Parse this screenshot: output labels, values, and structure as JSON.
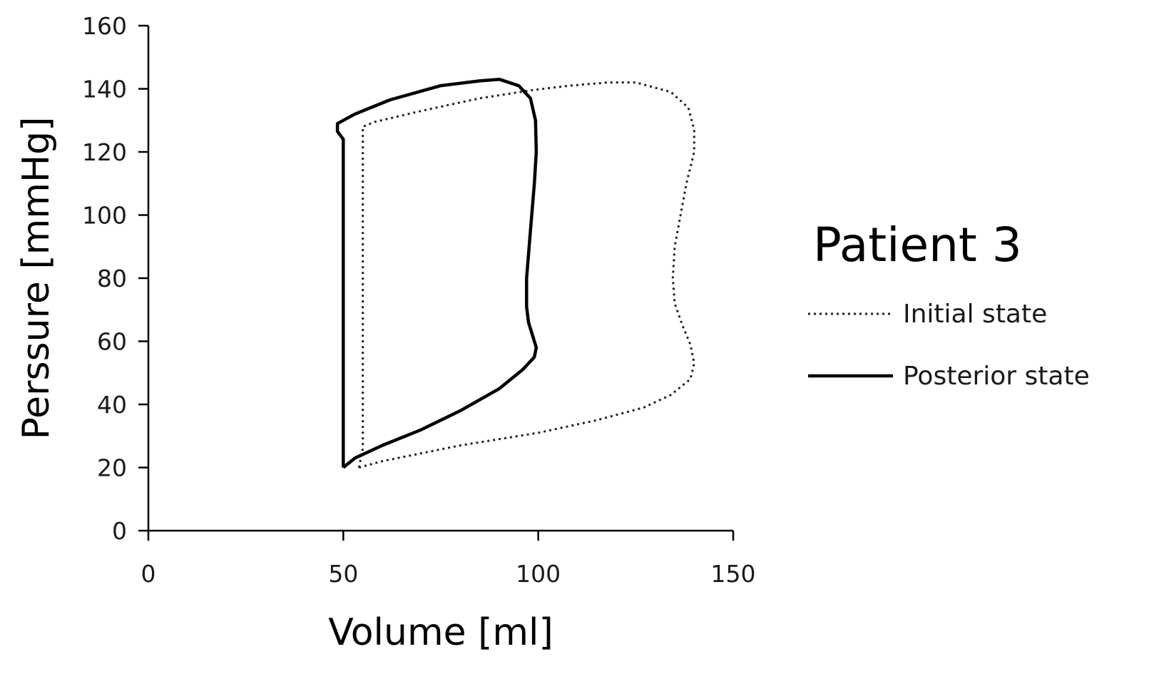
{
  "chart_data": {
    "type": "line",
    "title": "Patient 3",
    "xlabel": "Volume [ml]",
    "ylabel": "Perssure [mmHg]",
    "xlim": [
      0,
      150
    ],
    "ylim": [
      0,
      160
    ],
    "xticks": [
      0,
      50,
      100,
      150
    ],
    "yticks": [
      0,
      20,
      40,
      60,
      80,
      100,
      120,
      140,
      160
    ],
    "grid": false,
    "legend_position": "right",
    "series": [
      {
        "name": "Initial state",
        "style": "dotted",
        "color": "#222222",
        "points": [
          [
            54,
            20
          ],
          [
            60,
            22
          ],
          [
            80,
            27
          ],
          [
            100,
            31
          ],
          [
            115,
            35
          ],
          [
            127,
            39
          ],
          [
            134,
            43
          ],
          [
            139,
            48
          ],
          [
            140,
            53
          ],
          [
            139,
            59
          ],
          [
            137,
            65
          ],
          [
            135,
            72
          ],
          [
            134.5,
            80
          ],
          [
            135,
            90
          ],
          [
            136.5,
            100
          ],
          [
            138,
            110
          ],
          [
            140,
            120
          ],
          [
            140,
            127
          ],
          [
            138.5,
            134
          ],
          [
            134,
            139
          ],
          [
            125,
            142
          ],
          [
            118,
            142
          ],
          [
            108,
            141
          ],
          [
            98,
            139.5
          ],
          [
            85,
            137
          ],
          [
            70,
            133
          ],
          [
            58,
            129.5
          ],
          [
            55,
            128
          ],
          [
            55,
            120
          ],
          [
            55,
            100
          ],
          [
            55,
            80
          ],
          [
            55,
            60
          ],
          [
            55,
            40
          ],
          [
            55,
            26
          ],
          [
            54,
            20
          ]
        ]
      },
      {
        "name": "Posterior state",
        "style": "solid",
        "color": "#000000",
        "points": [
          [
            50,
            20
          ],
          [
            53,
            23
          ],
          [
            60,
            27
          ],
          [
            70,
            32
          ],
          [
            80,
            38
          ],
          [
            90,
            45
          ],
          [
            96,
            51
          ],
          [
            99,
            55
          ],
          [
            99.5,
            58
          ],
          [
            98.5,
            62
          ],
          [
            97.5,
            66
          ],
          [
            97,
            71
          ],
          [
            97,
            80
          ],
          [
            98,
            95
          ],
          [
            99,
            110
          ],
          [
            99.5,
            120
          ],
          [
            99.3,
            130
          ],
          [
            98,
            137
          ],
          [
            95,
            141
          ],
          [
            90,
            143
          ],
          [
            85,
            142.5
          ],
          [
            75,
            141
          ],
          [
            62,
            136.5
          ],
          [
            53,
            132
          ],
          [
            50,
            130
          ],
          [
            48.5,
            129
          ],
          [
            48.5,
            126.5
          ],
          [
            50,
            124
          ],
          [
            50,
            110
          ],
          [
            50,
            90
          ],
          [
            50,
            70
          ],
          [
            50,
            50
          ],
          [
            50,
            30
          ],
          [
            50,
            20
          ]
        ]
      }
    ]
  }
}
